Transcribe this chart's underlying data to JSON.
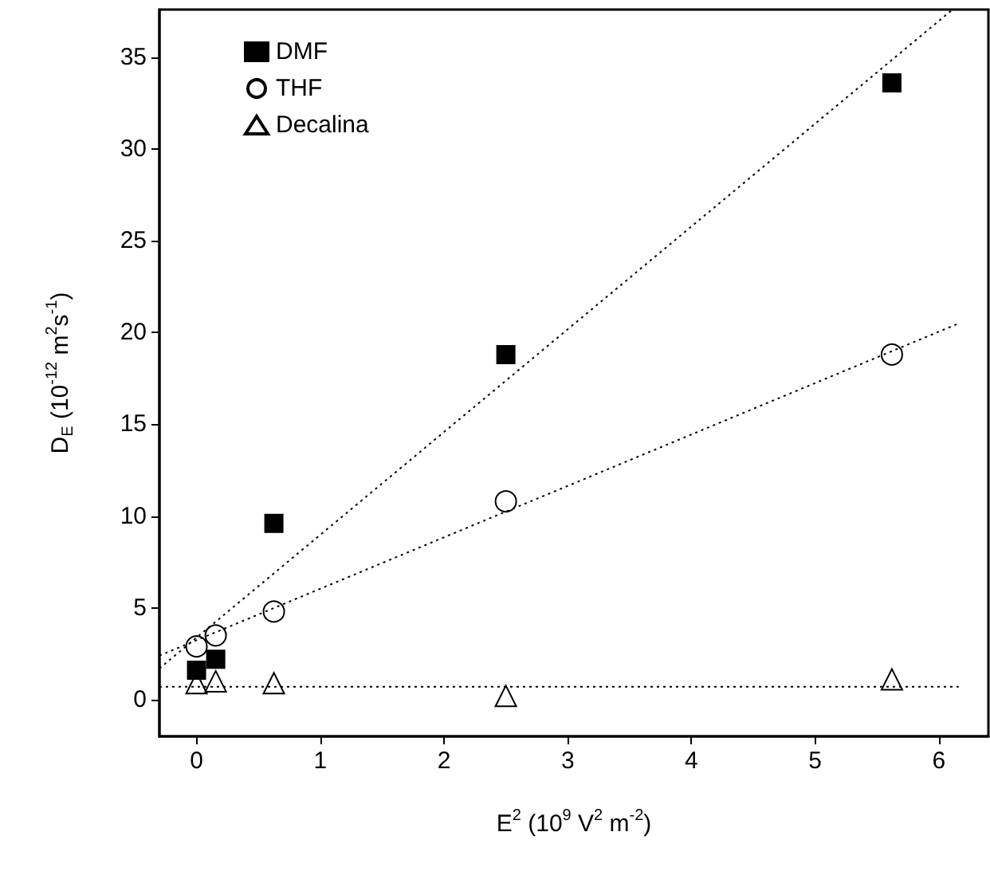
{
  "chart_data": {
    "type": "scatter",
    "xlabel": "E$^{2}$ (10$^{9}$ V$^{2}$ m$^{-2}$)",
    "ylabel": "D$_{E}$ (10$^{-12}$ m$^{2}$s$^{-1}$)",
    "xlim": [
      -0.3,
      6.4
    ],
    "xticks": [
      0,
      1,
      2,
      3,
      4,
      5,
      6
    ],
    "ylim": [
      -2,
      37.6
    ],
    "yticks": [
      0,
      5,
      10,
      15,
      20,
      25,
      30,
      35
    ],
    "grid": false,
    "legend": "top left",
    "series": [
      {
        "name": "DMF",
        "marker": "square",
        "color": "#000000",
        "x": [
          0,
          0.155,
          0.625,
          2.5,
          5.62
        ],
        "values": [
          1.6,
          2.2,
          9.6,
          18.8,
          33.6
        ]
      },
      {
        "name": "THF",
        "marker": "circle",
        "color": "#000000",
        "x": [
          0,
          0.155,
          0.625,
          2.5,
          5.62
        ],
        "values": [
          2.9,
          3.5,
          4.8,
          10.8,
          18.8
        ]
      },
      {
        "name": "Decalina",
        "marker": "triangle",
        "color": "#000000",
        "x": [
          0,
          0.155,
          0.625,
          2.5,
          5.62
        ],
        "values": [
          0.9,
          1,
          0.9,
          0.2,
          1.1
        ]
      },
      {
        "type": "line",
        "marker": "none",
        "line_style": "dotted",
        "color": "#000000",
        "x": [
          -0.3,
          6.11
        ],
        "values": [
          1.7,
          37.6
        ]
      },
      {
        "type": "line",
        "marker": "none",
        "line_style": "dotted",
        "color": "#000000",
        "x": [
          -0.3,
          6.16
        ],
        "values": [
          2.4,
          20.5
        ]
      },
      {
        "type": "line",
        "marker": "none",
        "line_style": "dotted",
        "color": "#000000",
        "x": [
          -0.3,
          6.16
        ],
        "values": [
          0.7,
          0.7
        ]
      }
    ]
  }
}
